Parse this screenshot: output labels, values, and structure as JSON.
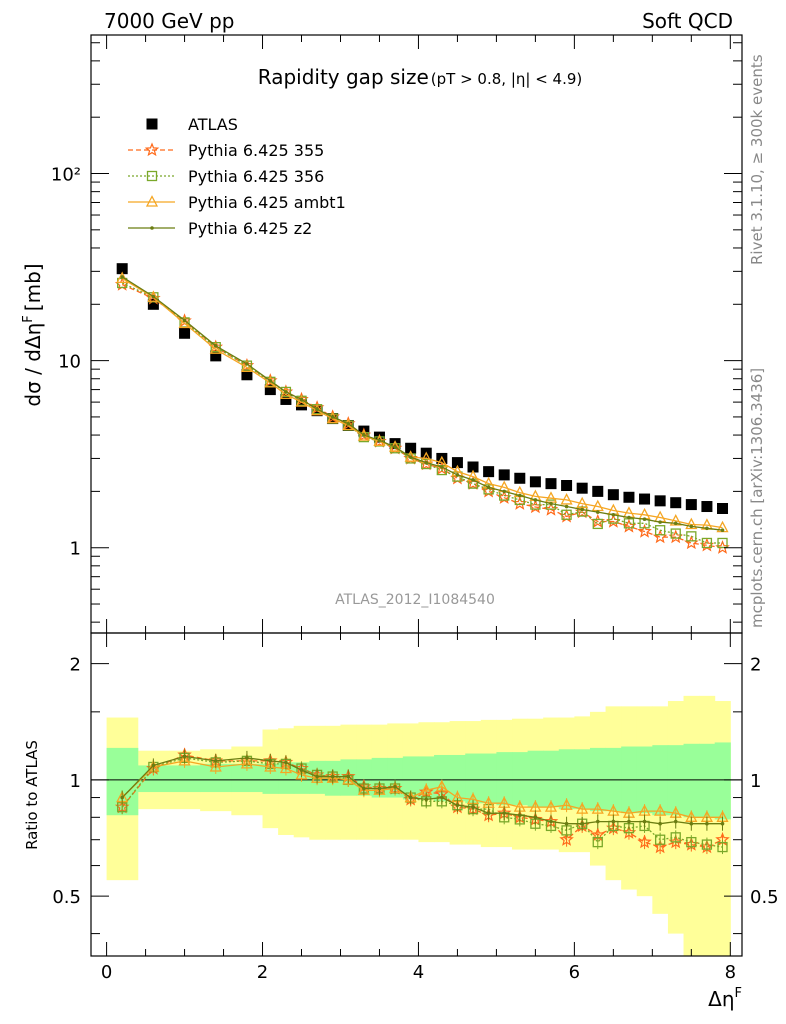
{
  "header": {
    "left": "7000 GeV pp",
    "right": "Soft QCD"
  },
  "side_labels": {
    "rivet": "Rivet 3.1.10, ≥ 300k events",
    "mcplots": "mcplots.cern.ch [arXiv:1306.3436]"
  },
  "chart_data": [
    {
      "type": "scatter",
      "panel": "main",
      "title": "Rapidity gap size",
      "title_cuts": "(pT > 0.8, |η| < 4.9)",
      "xlabel": "Δη",
      "xlabel_sup": "F",
      "ylabel": "dσ / dΔη",
      "ylabel_sup": "F",
      "ylabel_unit": "[mb]",
      "yscale": "log",
      "xlim": [
        -0.2,
        8.15
      ],
      "ylim": [
        0.35,
        550
      ],
      "y_ticks": [
        1,
        10,
        100
      ],
      "y_tick_labels": [
        "1",
        "10",
        "10²"
      ],
      "watermark": "ATLAS_2012_I1084540",
      "legend_position": "top-left",
      "x": [
        0.2,
        0.6,
        1.0,
        1.4,
        1.8,
        2.1,
        2.3,
        2.5,
        2.7,
        2.9,
        3.1,
        3.3,
        3.5,
        3.7,
        3.9,
        4.1,
        4.3,
        4.5,
        4.7,
        4.9,
        5.1,
        5.3,
        5.5,
        5.7,
        5.9,
        6.1,
        6.3,
        6.5,
        6.7,
        6.9,
        7.1,
        7.3,
        7.5,
        7.7,
        7.9
      ],
      "series": [
        {
          "name": "ATLAS",
          "color": "#000000",
          "marker": "square",
          "values": [
            31,
            20,
            14,
            10.6,
            8.4,
            7.0,
            6.2,
            5.8,
            5.4,
            4.9,
            4.5,
            4.2,
            3.9,
            3.6,
            3.4,
            3.2,
            3.0,
            2.85,
            2.7,
            2.55,
            2.45,
            2.35,
            2.25,
            2.2,
            2.15,
            2.08,
            2.0,
            1.92,
            1.86,
            1.82,
            1.78,
            1.74,
            1.7,
            1.66,
            1.62
          ]
        },
        {
          "name": "Pythia 6.425 355",
          "color": "#ff6a1a",
          "marker": "star",
          "dash": "5,3",
          "values": [
            25.5,
            21.5,
            16.3,
            11.8,
            9.4,
            7.8,
            6.8,
            6.2,
            5.6,
            5.0,
            4.6,
            4.0,
            3.7,
            3.4,
            3.0,
            2.8,
            2.65,
            2.35,
            2.2,
            2.0,
            1.85,
            1.72,
            1.65,
            1.6,
            1.47,
            1.55,
            1.38,
            1.38,
            1.3,
            1.22,
            1.14,
            1.14,
            1.06,
            1.03,
            1.0
          ]
        },
        {
          "name": "Pythia 6.425 356",
          "color": "#7aa82a",
          "marker": "open-square",
          "dash": "2,2",
          "values": [
            26.0,
            21.8,
            16.0,
            11.8,
            9.4,
            7.7,
            6.8,
            6.1,
            5.5,
            4.9,
            4.5,
            3.9,
            3.7,
            3.4,
            3.0,
            2.8,
            2.6,
            2.4,
            2.2,
            2.05,
            1.9,
            1.8,
            1.7,
            1.7,
            1.5,
            1.56,
            1.34,
            1.43,
            1.35,
            1.35,
            1.24,
            1.19,
            1.15,
            1.06,
            1.06
          ]
        },
        {
          "name": "Pythia 6.425 ambt1",
          "color": "#f5a623",
          "marker": "open-triangle",
          "dash": "",
          "values": [
            27.5,
            21.8,
            15.8,
            11.5,
            9.2,
            7.6,
            6.6,
            6.0,
            5.4,
            4.9,
            4.5,
            3.95,
            3.7,
            3.45,
            3.05,
            3.0,
            2.85,
            2.55,
            2.4,
            2.2,
            2.1,
            1.97,
            1.88,
            1.84,
            1.8,
            1.72,
            1.66,
            1.58,
            1.53,
            1.5,
            1.45,
            1.39,
            1.33,
            1.32,
            1.28
          ]
        },
        {
          "name": "Pythia 6.425 z2",
          "color": "#6b7d12",
          "marker": "dot",
          "dash": "",
          "values": [
            28.0,
            22.0,
            16.4,
            12.0,
            9.6,
            7.8,
            6.8,
            6.2,
            5.5,
            5.0,
            4.6,
            4.0,
            3.75,
            3.45,
            3.05,
            2.85,
            2.7,
            2.45,
            2.3,
            2.1,
            2.0,
            1.9,
            1.8,
            1.72,
            1.66,
            1.6,
            1.55,
            1.5,
            1.45,
            1.42,
            1.37,
            1.35,
            1.3,
            1.27,
            1.24
          ]
        }
      ]
    },
    {
      "type": "scatter",
      "panel": "ratio",
      "ylabel": "Ratio to ATLAS",
      "xlabel": "Δη",
      "xlabel_sup": "F",
      "xlim": [
        -0.2,
        8.15
      ],
      "ylim": [
        0.35,
        2.4
      ],
      "yscale": "log",
      "x_ticks": [
        0,
        2,
        4,
        6,
        8
      ],
      "y_ticks": [
        0.5,
        1,
        2
      ],
      "y_tick_labels": [
        "0.5",
        "1",
        "2"
      ],
      "reference_line": 1,
      "x_edges": [
        0,
        0.4,
        0.8,
        1.2,
        1.6,
        2.0,
        2.2,
        2.4,
        2.6,
        2.8,
        3.0,
        3.2,
        3.4,
        3.6,
        3.8,
        4.0,
        4.2,
        4.4,
        4.6,
        4.8,
        5.0,
        5.2,
        5.4,
        5.6,
        5.8,
        6.0,
        6.2,
        6.4,
        6.6,
        6.8,
        7.0,
        7.2,
        7.4,
        7.6,
        7.8,
        8.0
      ],
      "band_stat_sys": {
        "color": "#99ff99",
        "lower": [
          0.81,
          0.93,
          0.93,
          0.93,
          0.93,
          0.92,
          0.92,
          0.92,
          0.92,
          0.91,
          0.91,
          0.91,
          0.9,
          0.9,
          0.89,
          0.89,
          0.88,
          0.88,
          0.87,
          0.87,
          0.86,
          0.86,
          0.85,
          0.85,
          0.84,
          0.84,
          0.83,
          0.83,
          0.82,
          0.82,
          0.81,
          0.81,
          0.8,
          0.8,
          0.79
        ],
        "upper": [
          1.21,
          1.09,
          1.09,
          1.1,
          1.1,
          1.1,
          1.11,
          1.11,
          1.12,
          1.12,
          1.13,
          1.13,
          1.14,
          1.14,
          1.15,
          1.15,
          1.16,
          1.16,
          1.17,
          1.17,
          1.18,
          1.18,
          1.19,
          1.19,
          1.2,
          1.2,
          1.21,
          1.21,
          1.22,
          1.22,
          1.23,
          1.23,
          1.24,
          1.24,
          1.25
        ]
      },
      "band_total": {
        "color": "#ffff99",
        "lower": [
          0.55,
          0.84,
          0.84,
          0.83,
          0.81,
          0.75,
          0.72,
          0.71,
          0.7,
          0.7,
          0.7,
          0.7,
          0.7,
          0.7,
          0.7,
          0.69,
          0.69,
          0.68,
          0.68,
          0.67,
          0.67,
          0.66,
          0.66,
          0.66,
          0.65,
          0.65,
          0.6,
          0.55,
          0.52,
          0.5,
          0.45,
          0.4,
          0.35,
          0.35,
          0.35
        ],
        "upper": [
          1.45,
          1.19,
          1.19,
          1.2,
          1.22,
          1.35,
          1.36,
          1.38,
          1.38,
          1.38,
          1.39,
          1.39,
          1.39,
          1.4,
          1.4,
          1.41,
          1.41,
          1.42,
          1.42,
          1.43,
          1.43,
          1.44,
          1.44,
          1.45,
          1.45,
          1.46,
          1.5,
          1.55,
          1.55,
          1.55,
          1.55,
          1.6,
          1.65,
          1.65,
          1.6
        ]
      },
      "series": [
        {
          "name": "Pythia 6.425 355",
          "color": "#ff6a1a",
          "marker": "star",
          "dash": "5,3",
          "values": [
            0.85,
            1.07,
            1.16,
            1.12,
            1.12,
            1.12,
            1.11,
            1.07,
            1.03,
            1.02,
            1.02,
            0.96,
            0.95,
            0.95,
            0.89,
            0.93,
            0.92,
            0.85,
            0.84,
            0.81,
            0.82,
            0.8,
            0.79,
            0.78,
            0.7,
            0.76,
            0.72,
            0.75,
            0.73,
            0.69,
            0.67,
            0.69,
            0.68,
            0.67,
            0.7
          ]
        },
        {
          "name": "Pythia 6.425 356",
          "color": "#7aa82a",
          "marker": "open-square",
          "dash": "2,2",
          "values": [
            0.85,
            1.08,
            1.14,
            1.11,
            1.12,
            1.1,
            1.1,
            1.07,
            1.03,
            1.02,
            1.0,
            0.95,
            0.95,
            0.95,
            0.9,
            0.88,
            0.88,
            0.86,
            0.84,
            0.84,
            0.8,
            0.79,
            0.77,
            0.76,
            0.74,
            0.77,
            0.69,
            0.76,
            0.75,
            0.76,
            0.7,
            0.71,
            0.69,
            0.68,
            0.67
          ]
        },
        {
          "name": "Pythia 6.425 ambt1",
          "color": "#f5a623",
          "marker": "open-triangle",
          "dash": "",
          "values": [
            0.9,
            1.08,
            1.12,
            1.08,
            1.1,
            1.08,
            1.07,
            1.03,
            1.01,
            1.01,
            1.0,
            0.94,
            0.94,
            0.95,
            0.9,
            0.94,
            0.96,
            0.9,
            0.89,
            0.87,
            0.87,
            0.85,
            0.85,
            0.85,
            0.86,
            0.84,
            0.84,
            0.83,
            0.82,
            0.83,
            0.83,
            0.82,
            0.8,
            0.8,
            0.8
          ]
        },
        {
          "name": "Pythia 6.425 z2",
          "color": "#6b7d12",
          "marker": "dot",
          "dash": "",
          "values": [
            0.9,
            1.09,
            1.15,
            1.12,
            1.14,
            1.12,
            1.11,
            1.06,
            1.02,
            1.02,
            1.02,
            0.95,
            0.95,
            0.96,
            0.9,
            0.89,
            0.9,
            0.86,
            0.85,
            0.82,
            0.82,
            0.81,
            0.8,
            0.78,
            0.77,
            0.77,
            0.78,
            0.78,
            0.78,
            0.78,
            0.77,
            0.78,
            0.77,
            0.77,
            0.77
          ]
        }
      ]
    }
  ]
}
